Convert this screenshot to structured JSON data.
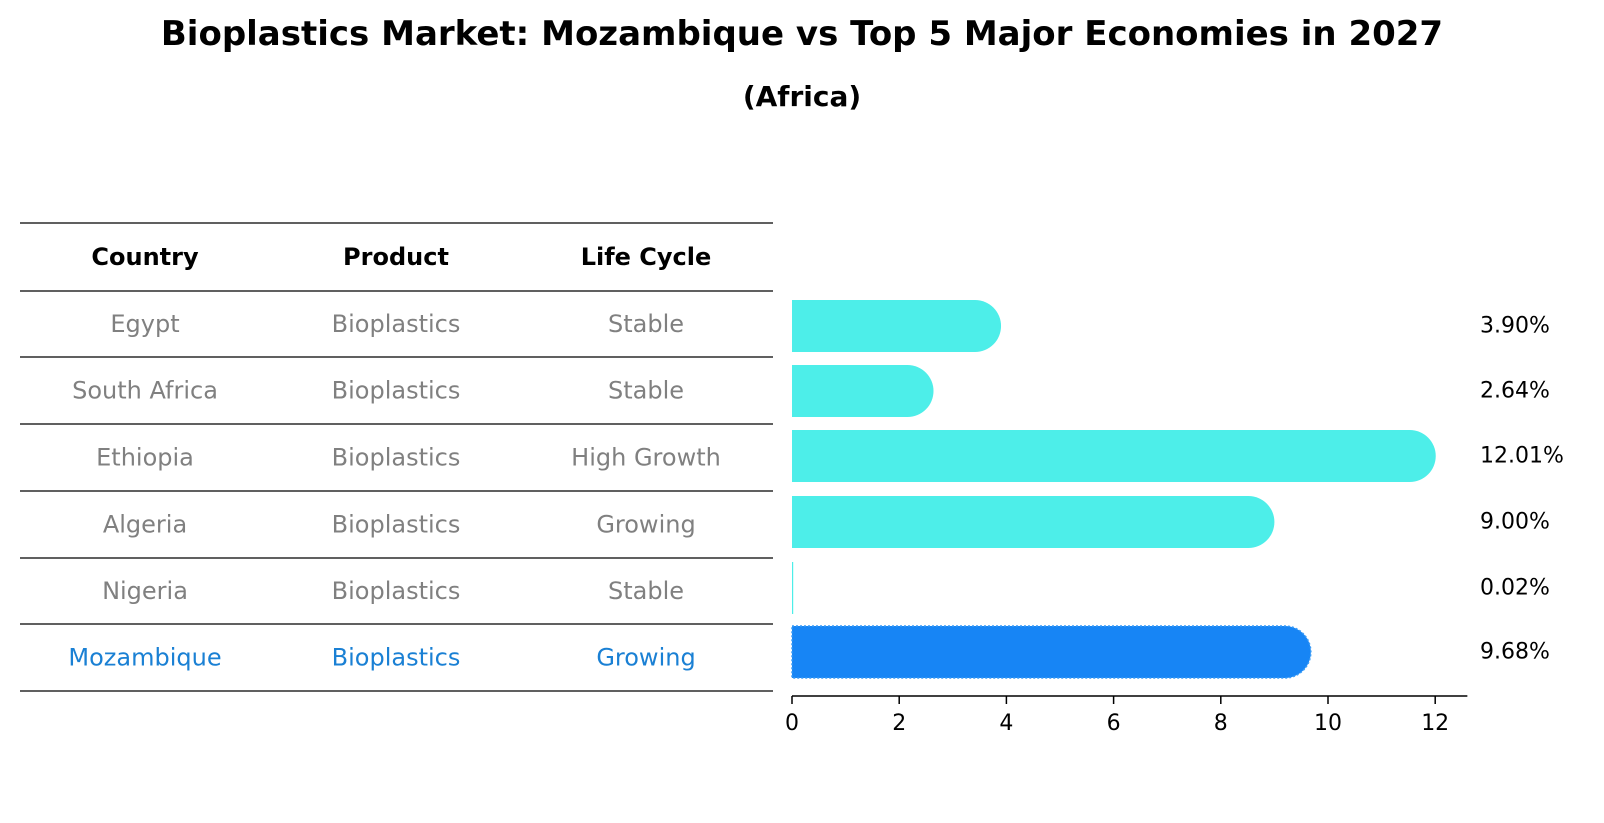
{
  "title": "Bioplastics Market: Mozambique vs Top 5 Major Economies in 2027",
  "subtitle": "(Africa)",
  "table": {
    "headers": [
      "Country",
      "Product",
      "Life Cycle"
    ],
    "rows": [
      {
        "country": "Egypt",
        "product": "Bioplastics",
        "life_cycle": "Stable",
        "highlight": false
      },
      {
        "country": "South Africa",
        "product": "Bioplastics",
        "life_cycle": "Stable",
        "highlight": false
      },
      {
        "country": "Ethiopia",
        "product": "Bioplastics",
        "life_cycle": "High Growth",
        "highlight": false
      },
      {
        "country": "Algeria",
        "product": "Bioplastics",
        "life_cycle": "Growing",
        "highlight": false
      },
      {
        "country": "Nigeria",
        "product": "Bioplastics",
        "life_cycle": "Stable",
        "highlight": false
      },
      {
        "country": "Mozambique",
        "product": "Bioplastics",
        "life_cycle": "Growing",
        "highlight": true
      }
    ]
  },
  "chart_data": {
    "type": "bar",
    "orientation": "horizontal",
    "categories": [
      "Egypt",
      "South Africa",
      "Ethiopia",
      "Algeria",
      "Nigeria",
      "Mozambique"
    ],
    "values": [
      3.9,
      2.64,
      12.01,
      9.0,
      0.02,
      9.68
    ],
    "value_labels": [
      "3.90%",
      "2.64%",
      "12.01%",
      "9.00%",
      "0.02%",
      "9.68%"
    ],
    "xlim": [
      0,
      12.6
    ],
    "xticks": [
      0,
      2,
      4,
      6,
      8,
      10,
      12
    ],
    "grid": false,
    "colors": {
      "default": "#4deee9",
      "highlight": "#1785f5",
      "text_default": "#808080",
      "text_highlight": "#1a80d4"
    }
  }
}
